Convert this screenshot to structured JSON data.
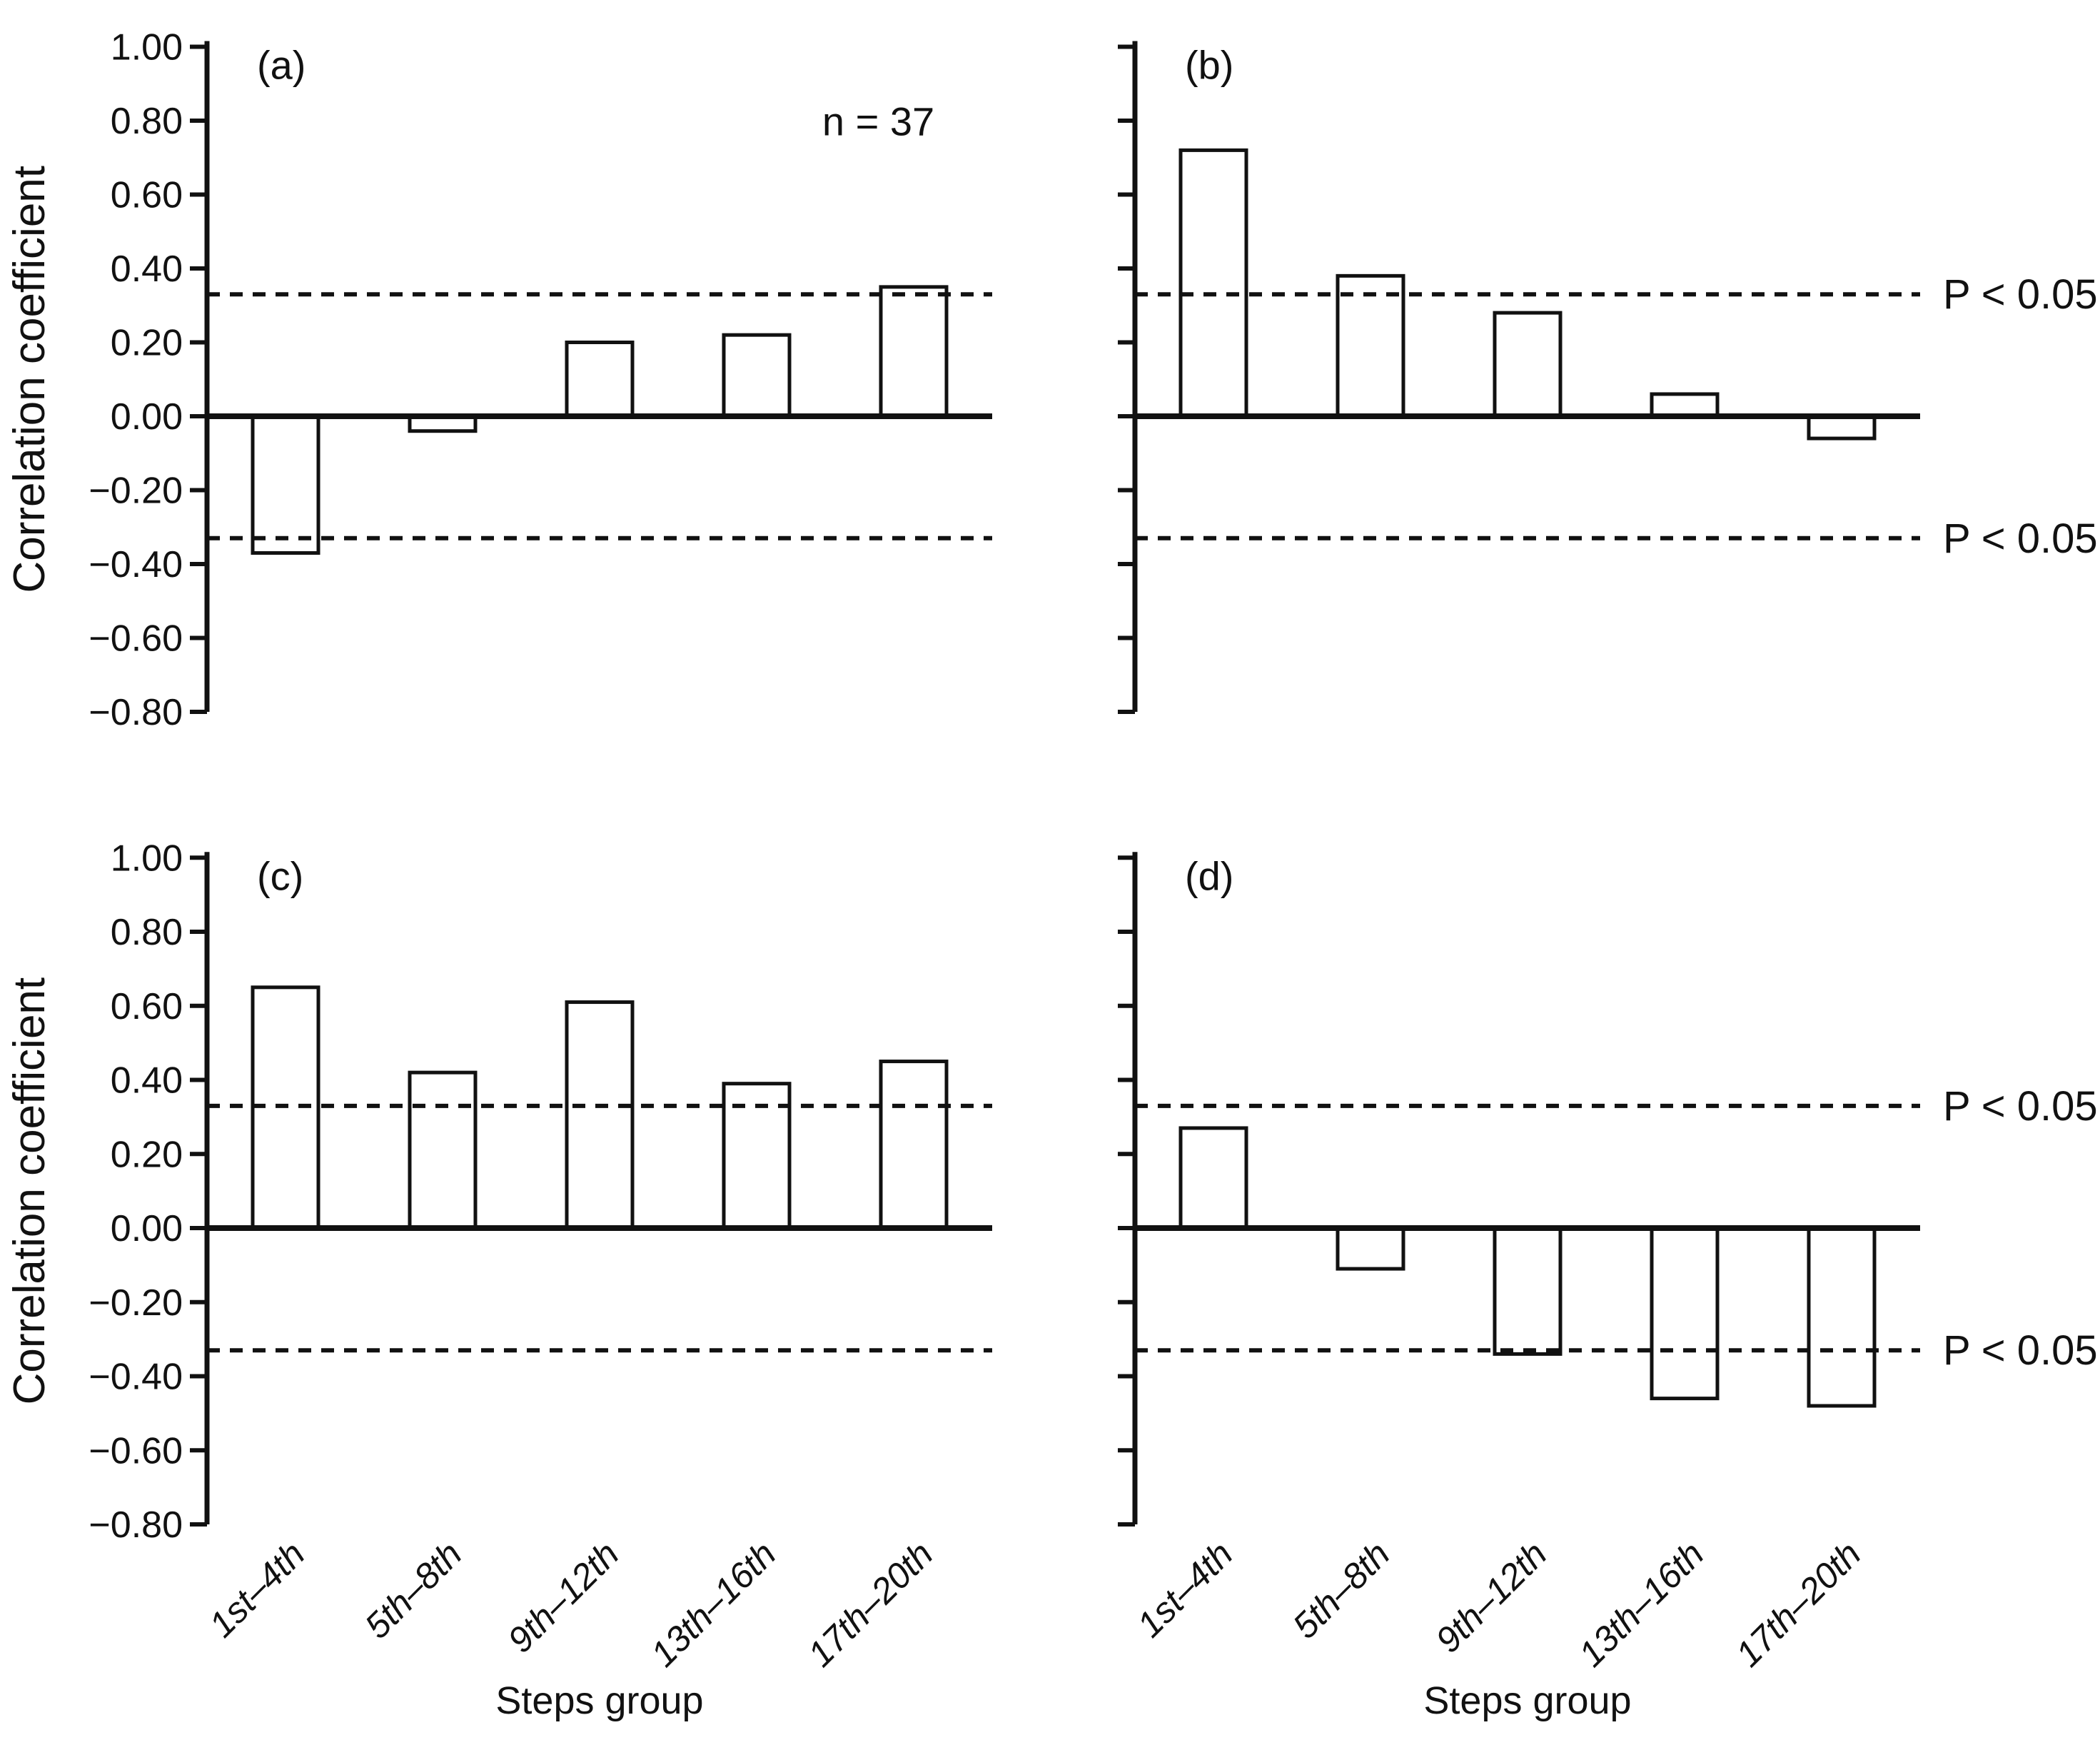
{
  "figure": {
    "background_color": "#ffffff",
    "ink_color": "#111111",
    "ylabel": "Correlation coefficient",
    "xlabel": "Steps group",
    "p_label": "P < 0.05",
    "annotation": "n = 37",
    "significance_threshold": 0.33,
    "ylim": [
      -0.8,
      1.0
    ],
    "ytick_labels": [
      "1.00",
      "0.80",
      "0.60",
      "0.40",
      "0.20",
      "0.00",
      "−0.20",
      "−0.40",
      "−0.60",
      "−0.80"
    ],
    "categories": [
      "1st–4th",
      "5th–8th",
      "9th–12th",
      "13th–16th",
      "17th–20th"
    ]
  },
  "chart_data": [
    {
      "type": "bar",
      "panel": "(a)",
      "row": 0,
      "col": 0,
      "categories": [
        "1st–4th",
        "5th–8th",
        "9th–12th",
        "13th–16th",
        "17th–20th"
      ],
      "values": [
        -0.37,
        -0.04,
        0.2,
        0.22,
        0.35
      ],
      "annotation": "n = 37",
      "ylabel": "Correlation coefficient",
      "xlabel": "",
      "ylim": [
        -0.8,
        1.0
      ],
      "grid": false,
      "legend": false,
      "threshold_lines": [
        0.33,
        -0.33
      ],
      "show_ytick_labels": true,
      "show_xtick_labels": false,
      "show_p_labels": false
    },
    {
      "type": "bar",
      "panel": "(b)",
      "row": 0,
      "col": 1,
      "categories": [
        "1st–4th",
        "5th–8th",
        "9th–12th",
        "13th–16th",
        "17th–20th"
      ],
      "values": [
        0.72,
        0.38,
        0.28,
        0.06,
        -0.06
      ],
      "annotation": "",
      "ylabel": "",
      "xlabel": "",
      "ylim": [
        -0.8,
        1.0
      ],
      "grid": false,
      "legend": false,
      "threshold_lines": [
        0.33,
        -0.33
      ],
      "show_ytick_labels": false,
      "show_xtick_labels": false,
      "show_p_labels": true
    },
    {
      "type": "bar",
      "panel": "(c)",
      "row": 1,
      "col": 0,
      "categories": [
        "1st–4th",
        "5th–8th",
        "9th–12th",
        "13th–16th",
        "17th–20th"
      ],
      "values": [
        0.65,
        0.42,
        0.61,
        0.39,
        0.45
      ],
      "annotation": "",
      "ylabel": "Correlation coefficient",
      "xlabel": "Steps group",
      "ylim": [
        -0.8,
        1.0
      ],
      "grid": false,
      "legend": false,
      "threshold_lines": [
        0.33,
        -0.33
      ],
      "show_ytick_labels": true,
      "show_xtick_labels": true,
      "show_p_labels": false
    },
    {
      "type": "bar",
      "panel": "(d)",
      "row": 1,
      "col": 1,
      "categories": [
        "1st–4th",
        "5th–8th",
        "9th–12th",
        "13th–16th",
        "17th–20th"
      ],
      "values": [
        0.27,
        -0.11,
        -0.34,
        -0.46,
        -0.48
      ],
      "annotation": "",
      "ylabel": "",
      "xlabel": "Steps group",
      "ylim": [
        -0.8,
        1.0
      ],
      "grid": false,
      "legend": false,
      "threshold_lines": [
        0.33,
        -0.33
      ],
      "show_ytick_labels": false,
      "show_xtick_labels": true,
      "show_p_labels": true
    }
  ]
}
